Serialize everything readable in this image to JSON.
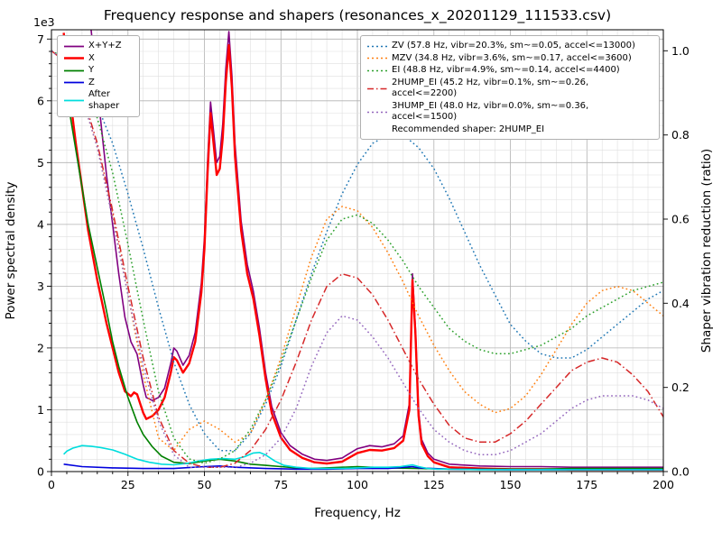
{
  "figure": {
    "title": "Frequency response and shapers (resonances_x_20201129_111533.csv)"
  },
  "chart_data": {
    "type": "line",
    "title": "Frequency response and shapers (resonances_x_20201129_111533.csv)",
    "xlabel": "Frequency, Hz",
    "ylabel_left": "Power spectral density",
    "ylabel_right": "Shaper vibration reduction (ratio)",
    "left_axis_offset_text": "1e3",
    "xlim": [
      0,
      200
    ],
    "left_max": 7.15,
    "right_max": 1.05,
    "xticks": [
      0,
      25,
      50,
      75,
      100,
      125,
      150,
      175,
      200
    ],
    "yticks_left": [
      0,
      1,
      2,
      3,
      4,
      5,
      6,
      7
    ],
    "yticks_right": [
      "0.0",
      "0.2",
      "0.4",
      "0.6",
      "0.8",
      "1.0"
    ],
    "grid": "both",
    "legend_note": "Recommended shaper: 2HUMP_EI",
    "psd_unit": "1e3",
    "psd_series": [
      {
        "id": "x-y-z",
        "label": "X+Y+Z",
        "color": "#800080",
        "width": 1.6,
        "style": "solid",
        "x": [
          4,
          5,
          6,
          8,
          10,
          12,
          15,
          18,
          20,
          22,
          24,
          26,
          27,
          28,
          30,
          31,
          33,
          35,
          37,
          39,
          40,
          41,
          43,
          45,
          47,
          49,
          50,
          51,
          52,
          53,
          54,
          55,
          56,
          57,
          58,
          59,
          60,
          62,
          64,
          66,
          68,
          70,
          72,
          75,
          78,
          82,
          86,
          90,
          95,
          100,
          104,
          108,
          112,
          115,
          117,
          118,
          119,
          120,
          121,
          123,
          125,
          130,
          140,
          150,
          160,
          170,
          180,
          190,
          200
        ],
        "y": [
          13.7,
          12.9,
          11.8,
          10.2,
          9.0,
          7.6,
          6.2,
          4.8,
          4.0,
          3.2,
          2.5,
          2.1,
          2.0,
          1.9,
          1.4,
          1.2,
          1.15,
          1.2,
          1.35,
          1.75,
          2.0,
          1.95,
          1.72,
          1.88,
          2.25,
          3.05,
          3.78,
          4.98,
          5.98,
          5.5,
          5.0,
          5.1,
          5.62,
          6.52,
          7.12,
          6.4,
          5.3,
          4.05,
          3.35,
          2.92,
          2.32,
          1.6,
          1.05,
          0.63,
          0.42,
          0.28,
          0.2,
          0.18,
          0.22,
          0.37,
          0.42,
          0.4,
          0.45,
          0.58,
          1.1,
          3.2,
          2.3,
          0.98,
          0.52,
          0.3,
          0.2,
          0.12,
          0.09,
          0.08,
          0.08,
          0.07,
          0.07,
          0.07,
          0.07
        ]
      },
      {
        "id": "x",
        "label": "X",
        "color": "#ff0000",
        "width": 2.4,
        "style": "solid",
        "x": [
          4,
          5,
          6,
          8,
          10,
          12,
          15,
          18,
          20,
          22,
          24,
          26,
          27,
          28,
          30,
          31,
          33,
          35,
          37,
          39,
          40,
          41,
          43,
          45,
          47,
          49,
          50,
          51,
          52,
          53,
          54,
          55,
          56,
          57,
          58,
          59,
          60,
          62,
          64,
          66,
          68,
          70,
          72,
          75,
          78,
          82,
          86,
          90,
          95,
          100,
          104,
          108,
          112,
          115,
          117,
          118,
          119,
          120,
          121,
          123,
          125,
          130,
          140,
          150,
          160,
          170,
          180,
          190,
          200
        ],
        "y": [
          7.1,
          6.6,
          6.1,
          5.3,
          4.6,
          3.9,
          3.1,
          2.4,
          2.0,
          1.6,
          1.3,
          1.22,
          1.28,
          1.25,
          0.95,
          0.85,
          0.9,
          1.0,
          1.2,
          1.6,
          1.85,
          1.8,
          1.6,
          1.75,
          2.1,
          2.9,
          3.6,
          4.8,
          5.8,
          5.3,
          4.8,
          4.9,
          5.4,
          6.3,
          6.9,
          6.2,
          5.1,
          3.9,
          3.2,
          2.8,
          2.2,
          1.5,
          0.95,
          0.55,
          0.35,
          0.22,
          0.15,
          0.13,
          0.16,
          0.3,
          0.35,
          0.34,
          0.38,
          0.5,
          1.0,
          3.1,
          2.2,
          0.9,
          0.45,
          0.25,
          0.15,
          0.07,
          0.05,
          0.04,
          0.04,
          0.03,
          0.03,
          0.03,
          0.03
        ]
      },
      {
        "id": "y",
        "label": "Y",
        "color": "#008000",
        "width": 1.6,
        "style": "solid",
        "x": [
          4,
          5,
          6,
          8,
          10,
          12,
          15,
          18,
          20,
          22,
          25,
          28,
          30,
          33,
          36,
          40,
          45,
          50,
          55,
          60,
          65,
          70,
          75,
          80,
          85,
          90,
          95,
          100,
          110,
          120,
          130,
          140,
          150,
          160,
          170,
          180,
          190,
          200
        ],
        "y": [
          6.5,
          6.2,
          5.8,
          5.2,
          4.6,
          4.0,
          3.3,
          2.6,
          2.1,
          1.7,
          1.2,
          0.8,
          0.6,
          0.4,
          0.25,
          0.15,
          0.13,
          0.17,
          0.2,
          0.17,
          0.12,
          0.1,
          0.08,
          0.06,
          0.05,
          0.06,
          0.07,
          0.08,
          0.06,
          0.05,
          0.04,
          0.04,
          0.04,
          0.04,
          0.05,
          0.05,
          0.05,
          0.05
        ]
      },
      {
        "id": "z",
        "label": "Z",
        "color": "#0000dd",
        "width": 1.6,
        "style": "solid",
        "x": [
          4,
          10,
          20,
          30,
          40,
          50,
          55,
          60,
          70,
          80,
          90,
          100,
          110,
          118,
          120,
          130,
          150,
          170,
          200
        ],
        "y": [
          0.12,
          0.08,
          0.06,
          0.05,
          0.05,
          0.08,
          0.09,
          0.07,
          0.05,
          0.04,
          0.04,
          0.05,
          0.05,
          0.08,
          0.06,
          0.04,
          0.03,
          0.03,
          0.03
        ]
      },
      {
        "id": "after-shaper",
        "label": "After shaper",
        "color": "#00dddd",
        "width": 1.6,
        "style": "solid",
        "x": [
          4,
          5,
          7,
          10,
          13,
          16,
          20,
          24,
          28,
          32,
          36,
          40,
          44,
          48,
          52,
          56,
          60,
          63,
          66,
          68,
          70,
          73,
          76,
          80,
          85,
          90,
          95,
          100,
          105,
          110,
          114,
          117,
          118,
          120,
          123,
          126,
          130,
          140,
          150,
          160,
          170,
          180,
          190,
          200
        ],
        "y": [
          0.28,
          0.33,
          0.38,
          0.42,
          0.41,
          0.39,
          0.35,
          0.28,
          0.2,
          0.15,
          0.12,
          0.11,
          0.13,
          0.17,
          0.2,
          0.21,
          0.2,
          0.24,
          0.3,
          0.31,
          0.27,
          0.17,
          0.1,
          0.07,
          0.05,
          0.05,
          0.05,
          0.06,
          0.07,
          0.07,
          0.08,
          0.1,
          0.11,
          0.08,
          0.05,
          0.04,
          0.04,
          0.03,
          0.03,
          0.03,
          0.03,
          0.03,
          0.03,
          0.03
        ]
      }
    ],
    "shaper_x": [
      0,
      5,
      10,
      15,
      20,
      25,
      30,
      35,
      40,
      45,
      50,
      55,
      60,
      65,
      70,
      75,
      80,
      85,
      90,
      95,
      100,
      105,
      110,
      115,
      120,
      125,
      130,
      135,
      140,
      145,
      150,
      155,
      160,
      165,
      170,
      175,
      180,
      185,
      190,
      195,
      200
    ],
    "shaper_series": [
      {
        "id": "zv",
        "label": "ZV (57.8 Hz, vibr=20.3%, sm~=0.05, accel<=13000)",
        "color": "#1f77b4",
        "style": "dotted",
        "y": [
          1.0,
          0.98,
          0.94,
          0.87,
          0.78,
          0.66,
          0.53,
          0.39,
          0.26,
          0.16,
          0.09,
          0.05,
          0.05,
          0.09,
          0.16,
          0.25,
          0.36,
          0.47,
          0.57,
          0.66,
          0.73,
          0.78,
          0.8,
          0.8,
          0.77,
          0.72,
          0.65,
          0.57,
          0.49,
          0.42,
          0.35,
          0.31,
          0.28,
          0.27,
          0.27,
          0.29,
          0.32,
          0.35,
          0.38,
          0.41,
          0.43
        ]
      },
      {
        "id": "mzv",
        "label": "MZV (34.8 Hz, vibr=3.6%, sm~=0.17, accel<=3600)",
        "color": "#ff7f0e",
        "style": "dotted",
        "y": [
          1.0,
          0.97,
          0.89,
          0.77,
          0.61,
          0.42,
          0.23,
          0.08,
          0.05,
          0.1,
          0.12,
          0.1,
          0.07,
          0.09,
          0.17,
          0.27,
          0.39,
          0.51,
          0.6,
          0.63,
          0.62,
          0.58,
          0.52,
          0.45,
          0.37,
          0.3,
          0.24,
          0.19,
          0.16,
          0.14,
          0.15,
          0.18,
          0.23,
          0.29,
          0.35,
          0.4,
          0.43,
          0.44,
          0.43,
          0.4,
          0.37
        ]
      },
      {
        "id": "ei",
        "label": "EI (48.8 Hz, vibr=4.9%, sm~=0.14, accel<=4400)",
        "color": "#2ca02c",
        "style": "dotted",
        "y": [
          1.0,
          0.98,
          0.93,
          0.84,
          0.71,
          0.54,
          0.36,
          0.19,
          0.08,
          0.03,
          0.02,
          0.03,
          0.05,
          0.1,
          0.17,
          0.26,
          0.36,
          0.46,
          0.55,
          0.6,
          0.61,
          0.59,
          0.55,
          0.5,
          0.44,
          0.39,
          0.34,
          0.31,
          0.29,
          0.28,
          0.28,
          0.29,
          0.3,
          0.32,
          0.34,
          0.37,
          0.39,
          0.41,
          0.43,
          0.44,
          0.45
        ]
      },
      {
        "id": "2hump-ei",
        "label": "2HUMP_EI (45.2 Hz, vibr=0.1%, sm~=0.26, accel<=2200)",
        "color": "#d62728",
        "style": "dashdot",
        "y": [
          1.0,
          0.97,
          0.9,
          0.78,
          0.62,
          0.44,
          0.27,
          0.13,
          0.05,
          0.02,
          0.01,
          0.01,
          0.02,
          0.05,
          0.1,
          0.17,
          0.26,
          0.36,
          0.44,
          0.47,
          0.46,
          0.42,
          0.36,
          0.29,
          0.22,
          0.16,
          0.11,
          0.08,
          0.07,
          0.07,
          0.09,
          0.12,
          0.16,
          0.2,
          0.24,
          0.26,
          0.27,
          0.26,
          0.23,
          0.19,
          0.13
        ]
      },
      {
        "id": "3hump-ei",
        "label": "3HUMP_EI (48.0 Hz, vibr=0.0%, sm~=0.36, accel<=1500)",
        "color": "#9467bd",
        "style": "dotted",
        "y": [
          1.0,
          0.97,
          0.89,
          0.77,
          0.6,
          0.42,
          0.25,
          0.12,
          0.04,
          0.01,
          0.01,
          0.01,
          0.01,
          0.02,
          0.04,
          0.08,
          0.15,
          0.25,
          0.33,
          0.37,
          0.36,
          0.32,
          0.27,
          0.21,
          0.15,
          0.1,
          0.07,
          0.05,
          0.04,
          0.04,
          0.05,
          0.07,
          0.09,
          0.12,
          0.15,
          0.17,
          0.18,
          0.18,
          0.18,
          0.17,
          0.15
        ]
      }
    ]
  }
}
